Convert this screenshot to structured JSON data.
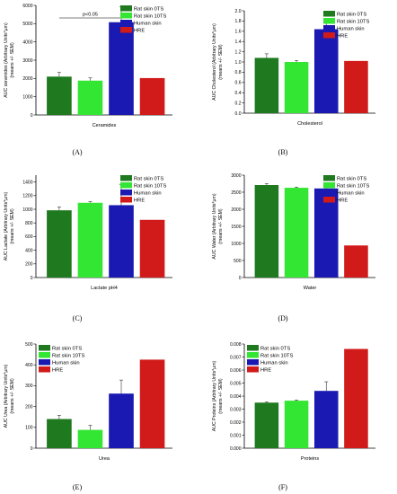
{
  "legend_colors": {
    "Rat skin 0TS": "#1f7a1f",
    "Rat skin 10TS": "#33e633",
    "Human skin": "#1a1ab3",
    "HRE": "#d11a1a"
  },
  "chart_data": [
    {
      "type": "bar",
      "panel": "(A)",
      "xlabel": "Ceramides",
      "ylabel": "AUC ceramides (Arbitrary Units*µm)",
      "ylabel2": "(means +/- SEM)",
      "ylim": [
        0,
        6000
      ],
      "yticks": [
        "0",
        "1000",
        "2000",
        "3000",
        "4000",
        "5000",
        "6000"
      ],
      "tick_values": [
        0,
        1000,
        2000,
        3000,
        4000,
        5000,
        6000
      ],
      "legend_position": "top-right",
      "categories": [
        "Rat skin 0TS",
        "Rat skin 10TS",
        "Human skin",
        "HRE"
      ],
      "values": [
        2100,
        1880,
        5080,
        2020
      ],
      "errors": [
        230,
        150,
        850,
        0
      ],
      "annotation": "p<0.05",
      "sig_between": [
        0,
        2
      ]
    },
    {
      "type": "bar",
      "panel": "(B)",
      "xlabel": "Cholesterol",
      "ylabel": "AUC Cholesterol (Arbitrary Units*µm)",
      "ylabel2": "(means +/- SEM)",
      "ylim": [
        0,
        2.0
      ],
      "yticks": [
        "0.0",
        "0.2",
        "0.4",
        "0.6",
        "0.8",
        "1.0",
        "1.2",
        "1.4",
        "1.6",
        "1.8",
        "2.0"
      ],
      "tick_values": [
        0,
        0.2,
        0.4,
        0.6,
        0.8,
        1.0,
        1.2,
        1.4,
        1.6,
        1.8,
        2.0
      ],
      "legend_position": "top-right",
      "categories": [
        "Rat skin 0TS",
        "Rat skin 10TS",
        "Human skin",
        "HRE"
      ],
      "values": [
        1.08,
        1.0,
        1.64,
        1.02
      ],
      "errors": [
        0.08,
        0.03,
        0.18,
        0
      ],
      "annotation": "",
      "sig_between": null
    },
    {
      "type": "bar",
      "panel": "(C)",
      "xlabel": "Lactate pH4",
      "ylabel": "AUC Lactate (Arbitrary Units*µm)",
      "ylabel2": "(means +/- SEM)",
      "ylim": [
        0,
        1500
      ],
      "yticks": [
        "0",
        "200",
        "400",
        "600",
        "800",
        "1000",
        "1200",
        "1400"
      ],
      "tick_values": [
        0,
        200,
        400,
        600,
        800,
        1000,
        1200,
        1400
      ],
      "legend_position": "top-right",
      "categories": [
        "Rat skin 0TS",
        "Rat skin 10TS",
        "Human skin",
        "HRE"
      ],
      "values": [
        985,
        1095,
        1060,
        845
      ],
      "errors": [
        50,
        20,
        300,
        0
      ],
      "annotation": "",
      "sig_between": null
    },
    {
      "type": "bar",
      "panel": "(D)",
      "xlabel": "Water",
      "ylabel": "AUC Water (Arbitrary Units*µm)",
      "ylabel2": "(means +/- SEM)",
      "ylim": [
        0,
        3000
      ],
      "yticks": [
        "0",
        "500",
        "1000",
        "1500",
        "2000",
        "2500",
        "3000"
      ],
      "tick_values": [
        0,
        500,
        1000,
        1500,
        2000,
        2500,
        3000
      ],
      "legend_position": "top-right",
      "categories": [
        "Rat skin 0TS",
        "Rat skin 10TS",
        "Human skin",
        "HRE"
      ],
      "values": [
        2710,
        2630,
        2610,
        940
      ],
      "errors": [
        40,
        20,
        25,
        0
      ],
      "annotation": "",
      "sig_between": null
    },
    {
      "type": "bar",
      "panel": "(E)",
      "xlabel": "Urea",
      "ylabel": "AUC Urea (Arbitrary Units*µm)",
      "ylabel2": "(means +/- SEM)",
      "ylim": [
        0,
        500
      ],
      "yticks": [
        "0",
        "100",
        "200",
        "300",
        "400",
        "500"
      ],
      "tick_values": [
        0,
        100,
        200,
        300,
        400,
        500
      ],
      "legend_position": "top-left",
      "categories": [
        "Rat skin 0TS",
        "Rat skin 10TS",
        "Human skin",
        "HRE"
      ],
      "values": [
        140,
        88,
        262,
        425
      ],
      "errors": [
        18,
        22,
        65,
        0
      ],
      "annotation": "",
      "sig_between": null
    },
    {
      "type": "bar",
      "panel": "(F)",
      "xlabel": "Proteins",
      "ylabel": "AUC Proteins (Arbitrary Units*µm)",
      "ylabel2": "(means +/- SEM)",
      "ylim": [
        0,
        0.008
      ],
      "yticks": [
        "0.000",
        "0.001",
        "0.002",
        "0.003",
        "0.004",
        "0.005",
        "0.006",
        "0.007",
        "0.008"
      ],
      "tick_values": [
        0,
        0.001,
        0.002,
        0.003,
        0.004,
        0.005,
        0.006,
        0.007,
        0.008
      ],
      "legend_position": "top-left",
      "categories": [
        "Rat skin 0TS",
        "Rat skin 10TS",
        "Human skin",
        "HRE"
      ],
      "values": [
        0.0035,
        0.00365,
        0.0044,
        0.00762
      ],
      "errors": [
        5e-05,
        5e-05,
        0.0007,
        0
      ],
      "annotation": "",
      "sig_between": null
    }
  ]
}
